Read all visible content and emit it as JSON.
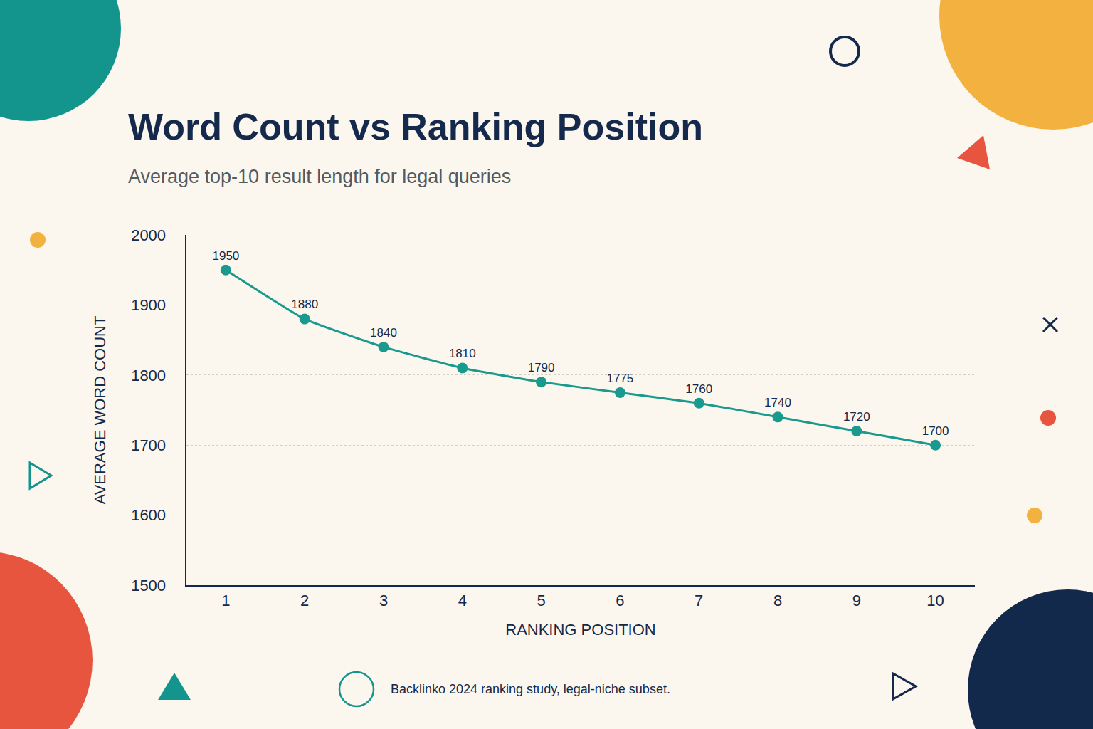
{
  "chart_data": {
    "type": "line",
    "title": "Word Count vs Ranking Position",
    "subtitle": "Average top-10 result length for legal queries",
    "x_label": "RANKING POSITION",
    "y_label": "AVERAGE WORD COUNT",
    "source": "Backlinko 2024 ranking study, legal-niche subset.",
    "x": [
      1,
      2,
      3,
      4,
      5,
      6,
      7,
      8,
      9,
      10
    ],
    "values": [
      1950,
      1880,
      1840,
      1810,
      1790,
      1775,
      1760,
      1740,
      1720,
      1700
    ],
    "color": "#1a9a8f",
    "marker": "circle",
    "data_labels": true,
    "xlim": [
      0.5,
      10.5
    ],
    "xticks": [
      1,
      2,
      3,
      4,
      5,
      6,
      7,
      8,
      9,
      10
    ],
    "ylim": [
      1500,
      2000
    ],
    "yticks": [
      1500,
      1600,
      1700,
      1800,
      1900,
      2000
    ],
    "grid": true
  }
}
